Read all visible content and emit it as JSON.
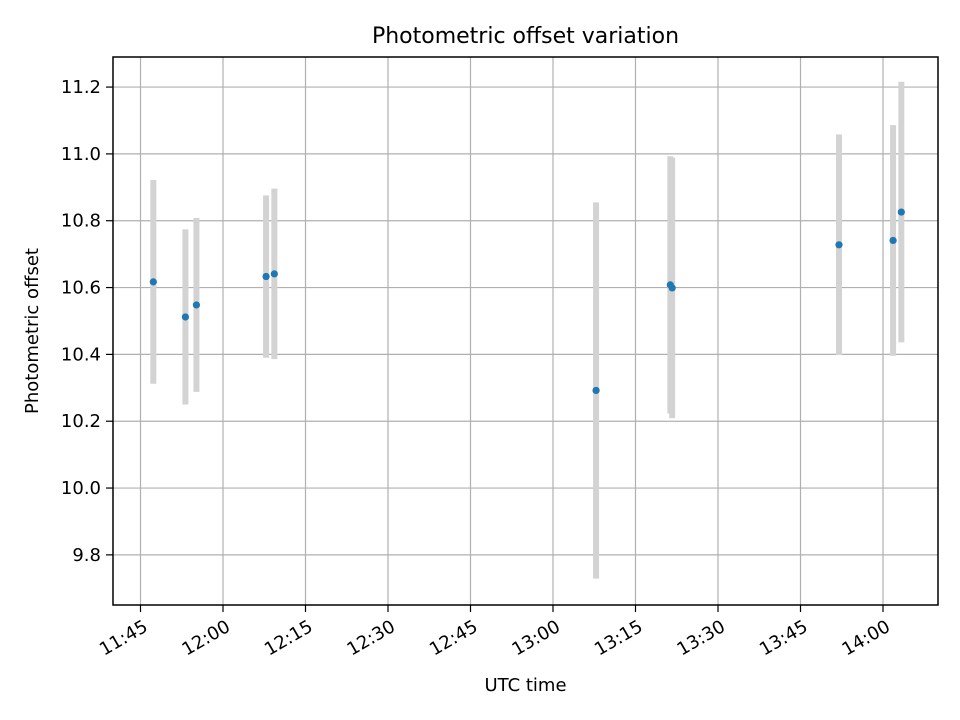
{
  "chart_data": {
    "type": "scatter",
    "title": "Photometric offset variation",
    "xlabel": "UTC time",
    "ylabel": "Photometric offset",
    "xlim": [
      "11:40",
      "14:10"
    ],
    "ylim": [
      9.65,
      11.29
    ],
    "x_ticks": [
      "11:45",
      "12:00",
      "12:15",
      "12:30",
      "12:45",
      "13:00",
      "13:15",
      "13:30",
      "13:45",
      "14:00"
    ],
    "y_ticks": [
      "9.8",
      "10.0",
      "10.2",
      "10.4",
      "10.6",
      "10.8",
      "11.0",
      "11.2"
    ],
    "grid": true,
    "point_color": "#1f77b4",
    "errorbar_color": "#d3d3d3",
    "points": [
      {
        "x": "11:47:20",
        "y": 10.617,
        "yerr": 0.305
      },
      {
        "x": "11:53:10",
        "y": 10.512,
        "yerr": 0.262
      },
      {
        "x": "11:55:10",
        "y": 10.548,
        "yerr": 0.26
      },
      {
        "x": "12:07:50",
        "y": 10.633,
        "yerr": 0.243
      },
      {
        "x": "12:09:20",
        "y": 10.641,
        "yerr": 0.255
      },
      {
        "x": "13:07:50",
        "y": 10.292,
        "yerr": 0.563
      },
      {
        "x": "13:21:20",
        "y": 10.608,
        "yerr": 0.385
      },
      {
        "x": "13:21:40",
        "y": 10.599,
        "yerr": 0.39
      },
      {
        "x": "13:52:00",
        "y": 10.728,
        "yerr": 0.33
      },
      {
        "x": "14:01:50",
        "y": 10.741,
        "yerr": 0.345
      },
      {
        "x": "14:03:20",
        "y": 10.826,
        "yerr": 0.39
      }
    ]
  }
}
